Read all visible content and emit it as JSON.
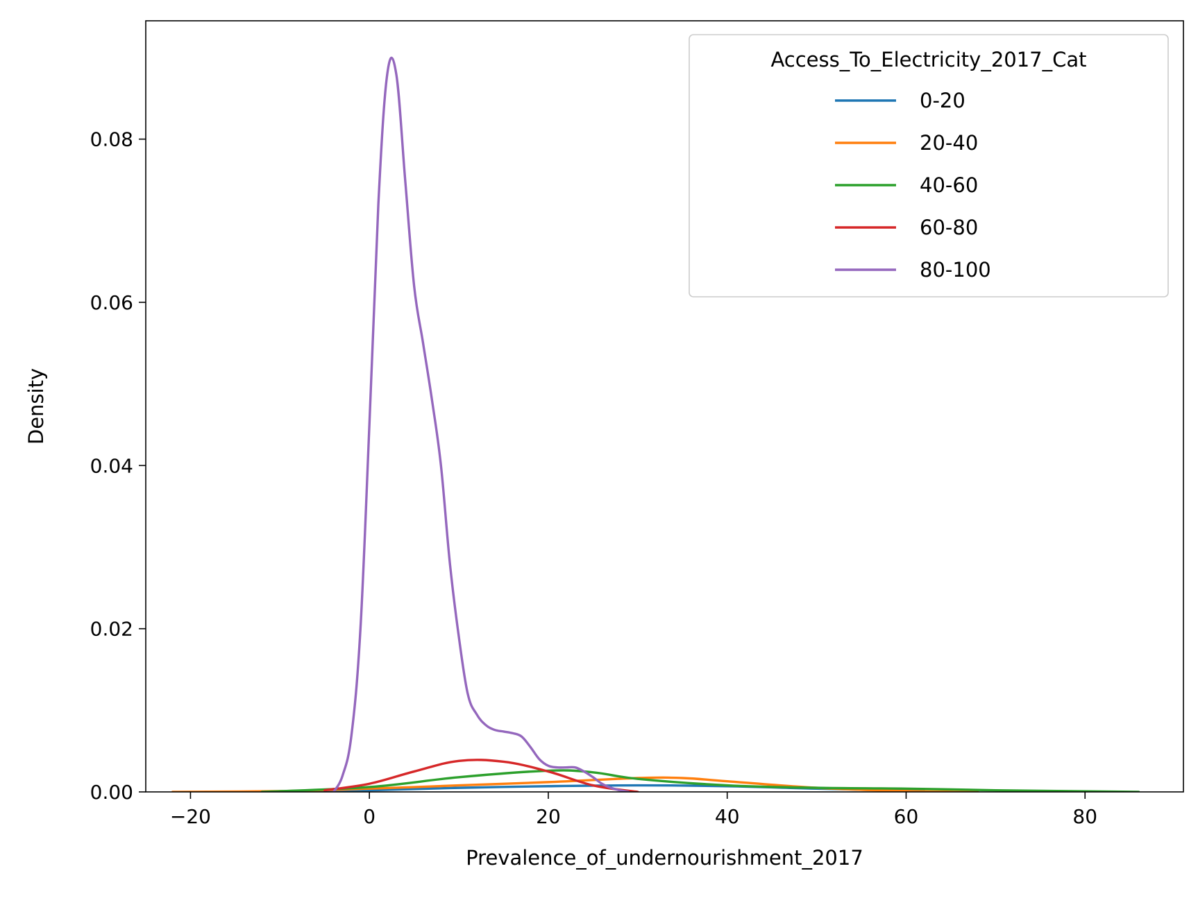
{
  "chart_data": {
    "type": "line",
    "title": "",
    "xlabel": "Prevalence_of_undernourishment_2017",
    "ylabel": "Density",
    "xlim": [
      -25,
      91
    ],
    "ylim": [
      0,
      0.0945
    ],
    "xticks": [
      -20,
      0,
      20,
      40,
      60,
      80
    ],
    "xtick_labels": [
      "−20",
      "0",
      "20",
      "40",
      "60",
      "80"
    ],
    "yticks": [
      0.0,
      0.02,
      0.04,
      0.06,
      0.08
    ],
    "ytick_labels": [
      "0.00",
      "0.02",
      "0.04",
      "0.06",
      "0.08"
    ],
    "grid": false,
    "legend": {
      "title": "Access_To_Electricity_2017_Cat",
      "placement": "upper-right"
    },
    "series": [
      {
        "name": "0-20",
        "color": "#1f77b4",
        "x": [
          -12,
          -5,
          0,
          10,
          20,
          30,
          40,
          50,
          62
        ],
        "y": [
          0.0,
          0.0001,
          0.0002,
          0.0005,
          0.0007,
          0.0008,
          0.0007,
          0.0004,
          0.0001
        ]
      },
      {
        "name": "20-40",
        "color": "#ff7f0e",
        "x": [
          -22,
          -10,
          0,
          10,
          20,
          30,
          35,
          40,
          50,
          60,
          68
        ],
        "y": [
          0.0,
          0.0001,
          0.0004,
          0.0008,
          0.0012,
          0.0017,
          0.0017,
          0.0013,
          0.0005,
          0.0001,
          0.0
        ]
      },
      {
        "name": "40-60",
        "color": "#2ca02c",
        "x": [
          -12,
          0,
          10,
          20,
          25,
          30,
          40,
          50,
          60,
          70,
          86
        ],
        "y": [
          0.0,
          0.0006,
          0.0018,
          0.0026,
          0.0024,
          0.0016,
          0.0008,
          0.0005,
          0.0004,
          0.0002,
          0.0
        ]
      },
      {
        "name": "60-80",
        "color": "#d62728",
        "x": [
          -5,
          0,
          5,
          10,
          15,
          20,
          25,
          30
        ],
        "y": [
          0.0002,
          0.001,
          0.0025,
          0.0038,
          0.0037,
          0.0025,
          0.0008,
          0.0
        ]
      },
      {
        "name": "80-100",
        "color": "#9467bd",
        "x": [
          -4,
          -3,
          -2,
          -1,
          0,
          1,
          2,
          3,
          4,
          5,
          6,
          7,
          8,
          9,
          10,
          11,
          12,
          13,
          14,
          15,
          16,
          17,
          18,
          19,
          20,
          21,
          22,
          23,
          24,
          25,
          26,
          27,
          28,
          29
        ],
        "y": [
          0.0,
          0.002,
          0.007,
          0.02,
          0.045,
          0.072,
          0.088,
          0.088,
          0.075,
          0.062,
          0.055,
          0.048,
          0.04,
          0.028,
          0.019,
          0.012,
          0.0095,
          0.0082,
          0.0076,
          0.0074,
          0.0072,
          0.0068,
          0.0055,
          0.004,
          0.0032,
          0.003,
          0.003,
          0.003,
          0.0025,
          0.0018,
          0.001,
          0.0005,
          0.0002,
          0.0
        ]
      }
    ]
  }
}
